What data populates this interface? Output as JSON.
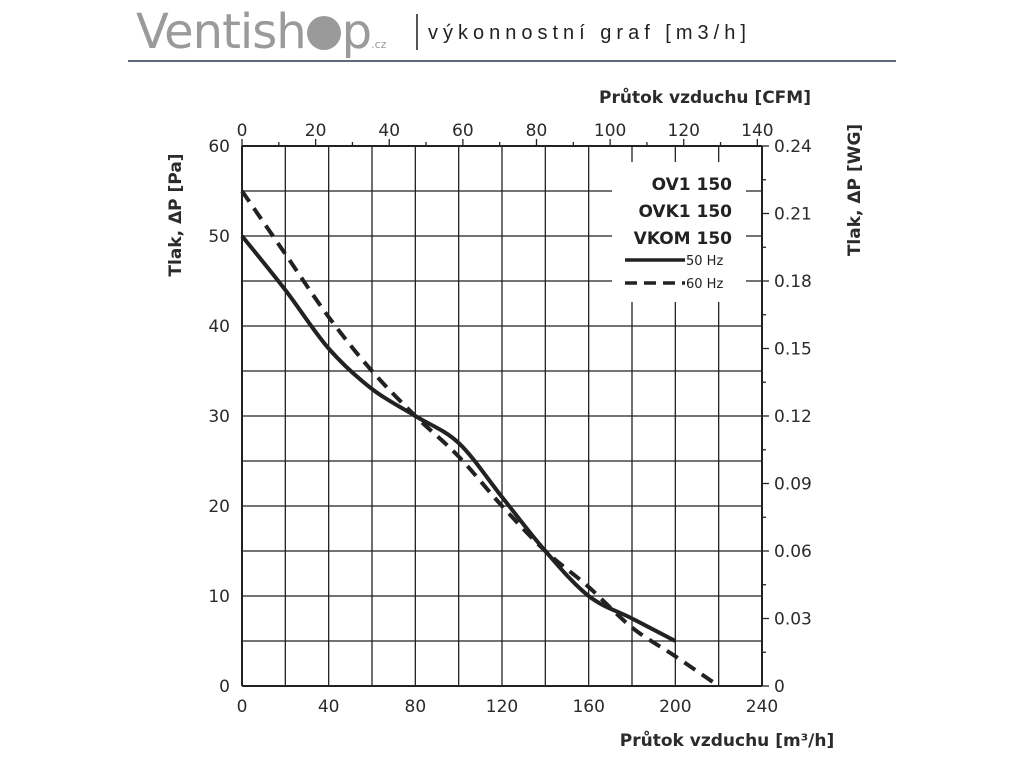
{
  "header": {
    "logo_text": "Ventish",
    "logo_text2": "p",
    "logo_tld": ".cz",
    "subtitle": "výkonnostní graf [m3/h]"
  },
  "chart_data": {
    "type": "line",
    "xlabel": "Průtok vzduchu [m³/h]",
    "x2label": "Průtok vzduchu [CFM]",
    "ylabel": "Tlak, ΔP [Pa]",
    "y2label": "Tlak, ΔP [WG]",
    "xlim": [
      0,
      240
    ],
    "ylim": [
      0,
      60
    ],
    "xticks": [
      "0",
      "40",
      "80",
      "120",
      "160",
      "200",
      "240"
    ],
    "x2ticks": [
      "0",
      "20",
      "40",
      "60",
      "80",
      "100",
      "120",
      "140"
    ],
    "yticks": [
      "0",
      "10",
      "20",
      "30",
      "40",
      "50",
      "60"
    ],
    "y2ticks": [
      "0",
      "0.03",
      "0.06",
      "0.09",
      "0.12",
      "0.15",
      "0.18",
      "0.21",
      "0.24"
    ],
    "grid": true,
    "legend": {
      "position": "top-right",
      "models": [
        "OV1 150",
        "OVK1 150",
        "VKOM 150"
      ]
    },
    "series": [
      {
        "name": "50 Hz",
        "style": "solid",
        "x": [
          0,
          20,
          40,
          60,
          80,
          100,
          120,
          140,
          160,
          180,
          200
        ],
        "y": [
          50,
          44,
          37.5,
          33,
          30,
          27,
          21,
          15,
          10,
          7.5,
          5
        ]
      },
      {
        "name": "60 Hz",
        "style": "dashed",
        "x": [
          0,
          20,
          40,
          60,
          80,
          100,
          120,
          140,
          160,
          180,
          200,
          220
        ],
        "y": [
          55,
          48,
          41,
          35,
          30,
          25.5,
          20,
          15,
          11,
          6.5,
          3.3,
          0
        ]
      }
    ]
  }
}
